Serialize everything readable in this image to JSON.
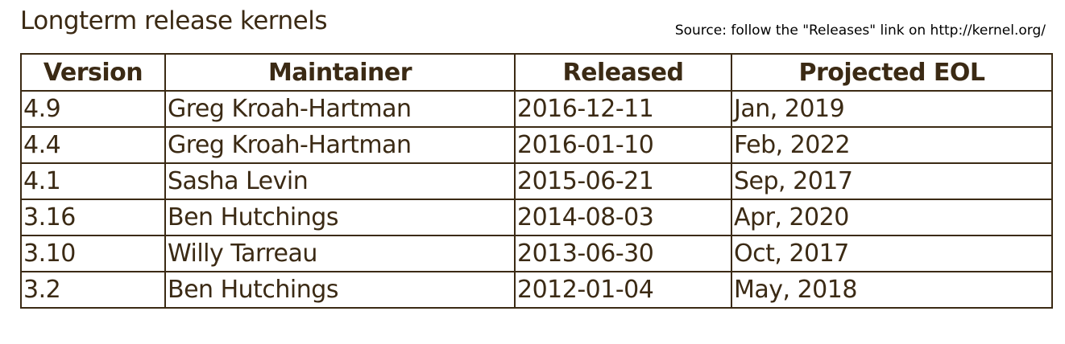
{
  "title": "Longterm release kernels",
  "source_note": "Source: follow the \"Releases\" link on http://kernel.org/",
  "table": {
    "headers": [
      "Version",
      "Maintainer",
      "Released",
      "Projected EOL"
    ],
    "rows": [
      [
        "4.9",
        "Greg Kroah-Hartman",
        "2016-12-11",
        "Jan, 2019"
      ],
      [
        "4.4",
        "Greg Kroah-Hartman",
        "2016-01-10",
        "Feb, 2022"
      ],
      [
        "4.1",
        "Sasha Levin",
        "2015-06-21",
        "Sep, 2017"
      ],
      [
        "3.16",
        "Ben Hutchings",
        "2014-08-03",
        "Apr, 2020"
      ],
      [
        "3.10",
        "Willy Tarreau",
        "2013-06-30",
        "Oct, 2017"
      ],
      [
        "3.2",
        "Ben Hutchings",
        "2012-01-04",
        "May, 2018"
      ]
    ]
  },
  "colors": {
    "text": "#3b2a14",
    "border": "#3b2a14",
    "background": "#ffffff"
  }
}
